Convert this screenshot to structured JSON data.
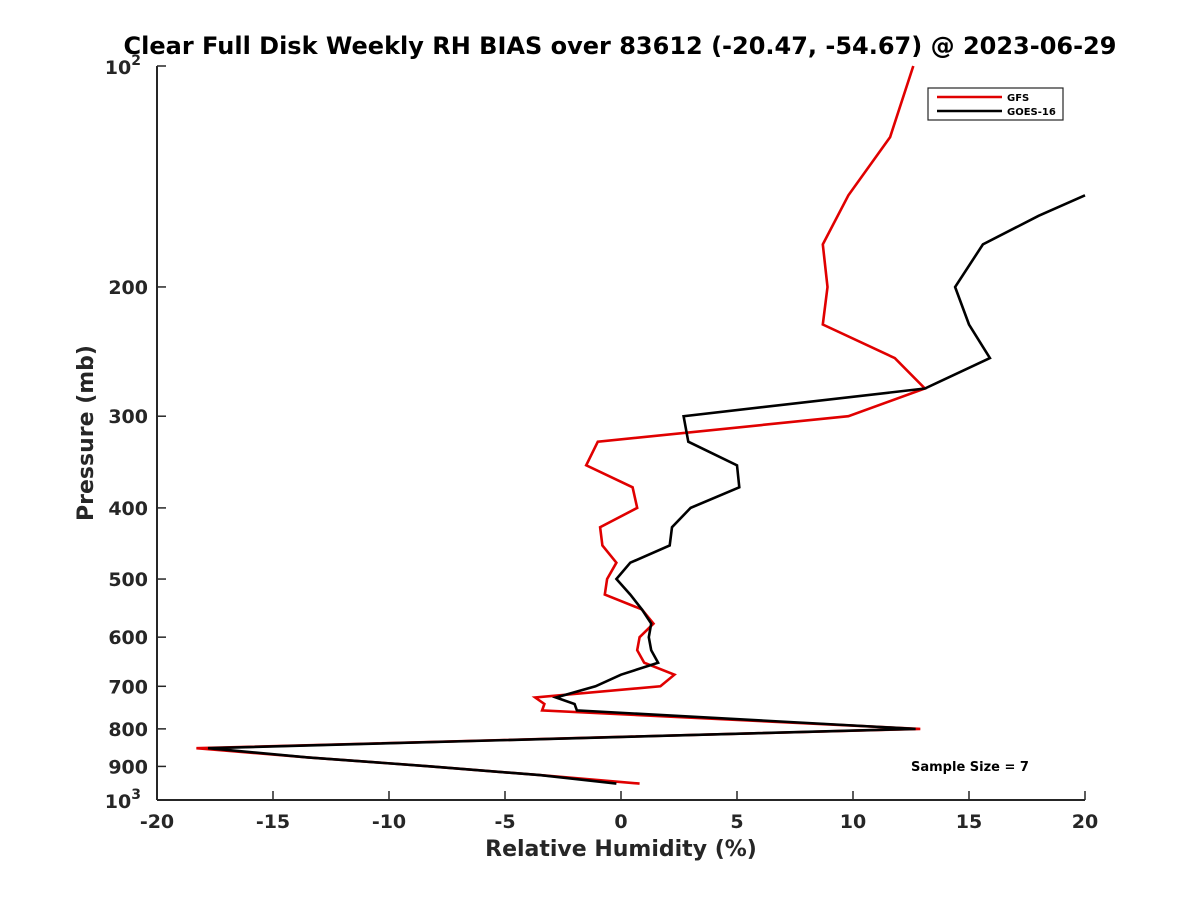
{
  "chart_data": {
    "type": "line",
    "title": "Clear Full Disk Weekly RH BIAS over 83612 (-20.47, -54.67) @ 2023-06-29",
    "xlabel": "Relative Humidity (%)",
    "ylabel": "Pressure (mb)",
    "xlim": [
      -20,
      20
    ],
    "ylim": [
      1000,
      100
    ],
    "yscale": "log",
    "x_ticks": [
      -20,
      -15,
      -10,
      -5,
      0,
      5,
      10,
      15,
      20
    ],
    "x_tick_labels": [
      "-20",
      "-15",
      "-10",
      "-5",
      "0",
      "5",
      "10",
      "15",
      "20"
    ],
    "y_ticks": [
      200,
      300,
      400,
      500,
      600,
      700,
      800,
      900
    ],
    "y_tick_labels": [
      "200",
      "300",
      "400",
      "500",
      "600",
      "700",
      "800",
      "900"
    ],
    "y_decade_labels": [
      {
        "value": 100,
        "base": "10",
        "exp": "2"
      },
      {
        "value": 1000,
        "base": "10",
        "exp": "3"
      }
    ],
    "grid": false,
    "legend_position": "top-right",
    "annotation": "Sample Size = 7",
    "series": [
      {
        "name": "GFS",
        "color": "#e00000",
        "points": [
          {
            "x": 12.6,
            "p": 100
          },
          {
            "x": 11.6,
            "p": 125
          },
          {
            "x": 9.8,
            "p": 150
          },
          {
            "x": 8.7,
            "p": 175
          },
          {
            "x": 8.9,
            "p": 200
          },
          {
            "x": 8.7,
            "p": 225
          },
          {
            "x": 11.8,
            "p": 250
          },
          {
            "x": 13.1,
            "p": 275
          },
          {
            "x": 9.8,
            "p": 300
          },
          {
            "x": -1.0,
            "p": 325
          },
          {
            "x": -1.5,
            "p": 350
          },
          {
            "x": 0.5,
            "p": 375
          },
          {
            "x": 0.7,
            "p": 400
          },
          {
            "x": -0.9,
            "p": 425
          },
          {
            "x": -0.8,
            "p": 450
          },
          {
            "x": -0.2,
            "p": 475
          },
          {
            "x": -0.6,
            "p": 500
          },
          {
            "x": -0.7,
            "p": 525
          },
          {
            "x": 0.9,
            "p": 550
          },
          {
            "x": 1.4,
            "p": 575
          },
          {
            "x": 0.8,
            "p": 600
          },
          {
            "x": 0.7,
            "p": 625
          },
          {
            "x": 1.0,
            "p": 650
          },
          {
            "x": 2.3,
            "p": 675
          },
          {
            "x": 1.7,
            "p": 700
          },
          {
            "x": -3.7,
            "p": 725
          },
          {
            "x": -3.3,
            "p": 740
          },
          {
            "x": -3.4,
            "p": 755
          },
          {
            "x": 12.9,
            "p": 800
          },
          {
            "x": -18.3,
            "p": 850
          },
          {
            "x": -13.5,
            "p": 875
          },
          {
            "x": -8.2,
            "p": 900
          },
          {
            "x": -3.5,
            "p": 925
          },
          {
            "x": 0.8,
            "p": 950
          }
        ]
      },
      {
        "name": "GOES-16",
        "color": "#000000",
        "points": [
          {
            "x": 20.0,
            "p": 150
          },
          {
            "x": 18.0,
            "p": 160
          },
          {
            "x": 15.6,
            "p": 175
          },
          {
            "x": 14.4,
            "p": 200
          },
          {
            "x": 15.0,
            "p": 225
          },
          {
            "x": 15.9,
            "p": 250
          },
          {
            "x": 13.1,
            "p": 275
          },
          {
            "x": 2.7,
            "p": 300
          },
          {
            "x": 2.9,
            "p": 325
          },
          {
            "x": 5.0,
            "p": 350
          },
          {
            "x": 5.1,
            "p": 375
          },
          {
            "x": 3.0,
            "p": 400
          },
          {
            "x": 2.2,
            "p": 425
          },
          {
            "x": 2.1,
            "p": 450
          },
          {
            "x": 0.4,
            "p": 475
          },
          {
            "x": -0.2,
            "p": 500
          },
          {
            "x": 0.4,
            "p": 525
          },
          {
            "x": 0.9,
            "p": 550
          },
          {
            "x": 1.3,
            "p": 575
          },
          {
            "x": 1.2,
            "p": 600
          },
          {
            "x": 1.3,
            "p": 625
          },
          {
            "x": 1.6,
            "p": 650
          },
          {
            "x": 0.0,
            "p": 675
          },
          {
            "x": -1.1,
            "p": 700
          },
          {
            "x": -2.8,
            "p": 725
          },
          {
            "x": -2.0,
            "p": 740
          },
          {
            "x": -1.9,
            "p": 755
          },
          {
            "x": 12.7,
            "p": 800
          },
          {
            "x": -17.8,
            "p": 850
          },
          {
            "x": -13.5,
            "p": 875
          },
          {
            "x": -8.2,
            "p": 900
          },
          {
            "x": -3.5,
            "p": 925
          },
          {
            "x": -0.2,
            "p": 950
          }
        ]
      }
    ]
  }
}
